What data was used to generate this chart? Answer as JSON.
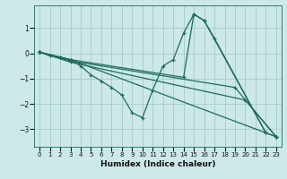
{
  "xlabel": "Humidex (Indice chaleur)",
  "bg_color": "#cce8e8",
  "line_color": "#1e6b5e",
  "grid_color": "#aacfcf",
  "xlim": [
    -0.5,
    23.5
  ],
  "ylim": [
    -3.7,
    1.9
  ],
  "xticks": [
    0,
    1,
    2,
    3,
    4,
    5,
    6,
    7,
    8,
    9,
    10,
    11,
    12,
    13,
    14,
    15,
    16,
    17,
    18,
    19,
    20,
    21,
    22,
    23
  ],
  "yticks": [
    -3,
    -2,
    -1,
    0,
    1
  ],
  "lines": [
    {
      "x": [
        0,
        1,
        2,
        3,
        4,
        5,
        6,
        7,
        8,
        9,
        10,
        11,
        12,
        13,
        14,
        15,
        16,
        17,
        22
      ],
      "y": [
        0.05,
        -0.1,
        -0.15,
        -0.25,
        -0.5,
        -0.85,
        -1.1,
        -1.35,
        -1.65,
        -2.35,
        -2.55,
        -1.45,
        -0.5,
        -0.25,
        0.8,
        1.55,
        1.3,
        0.6,
        -3.15
      ]
    },
    {
      "x": [
        0,
        2,
        3,
        14,
        15,
        16,
        22,
        23
      ],
      "y": [
        0.05,
        -0.15,
        -0.25,
        -0.95,
        1.55,
        1.3,
        -3.15,
        -3.3
      ]
    },
    {
      "x": [
        0,
        3,
        23
      ],
      "y": [
        0.05,
        -0.25,
        -3.3
      ]
    },
    {
      "x": [
        0,
        3,
        19,
        23
      ],
      "y": [
        0.05,
        -0.3,
        -1.35,
        -3.3
      ]
    },
    {
      "x": [
        0,
        3,
        20,
        23
      ],
      "y": [
        0.05,
        -0.35,
        -1.85,
        -3.3
      ]
    }
  ]
}
